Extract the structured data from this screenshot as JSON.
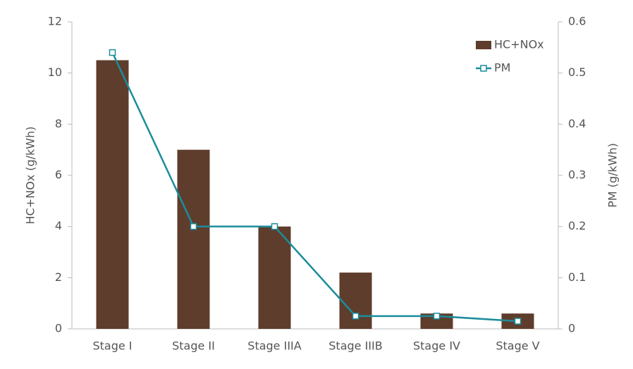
{
  "chart_data": {
    "type": "bar",
    "categories": [
      "Stage I",
      "Stage II",
      "Stage IIIA",
      "Stage IIIB",
      "Stage IV",
      "Stage V"
    ],
    "series": [
      {
        "name": "HC+NOx",
        "type": "bar",
        "color": "#5e3d2c",
        "values": [
          10.5,
          7,
          4,
          2.2,
          0.6,
          0.6
        ]
      },
      {
        "name": "PM",
        "type": "line",
        "axis": "y2",
        "color": "#1b8d9c",
        "values": [
          0.54,
          0.2,
          0.2,
          0.025,
          0.025,
          0.015
        ]
      }
    ],
    "ylabel": "HC+NOx (g/kWh)",
    "y2label": "PM (g/kWh)",
    "ylim": [
      0,
      12
    ],
    "yticks": [
      0,
      2,
      4,
      6,
      8,
      10,
      12
    ],
    "y2lim": [
      0,
      0.6
    ],
    "y2ticks": [
      0,
      0.1,
      0.2,
      0.3,
      0.4,
      0.5,
      0.6
    ],
    "legend": "upper right"
  }
}
